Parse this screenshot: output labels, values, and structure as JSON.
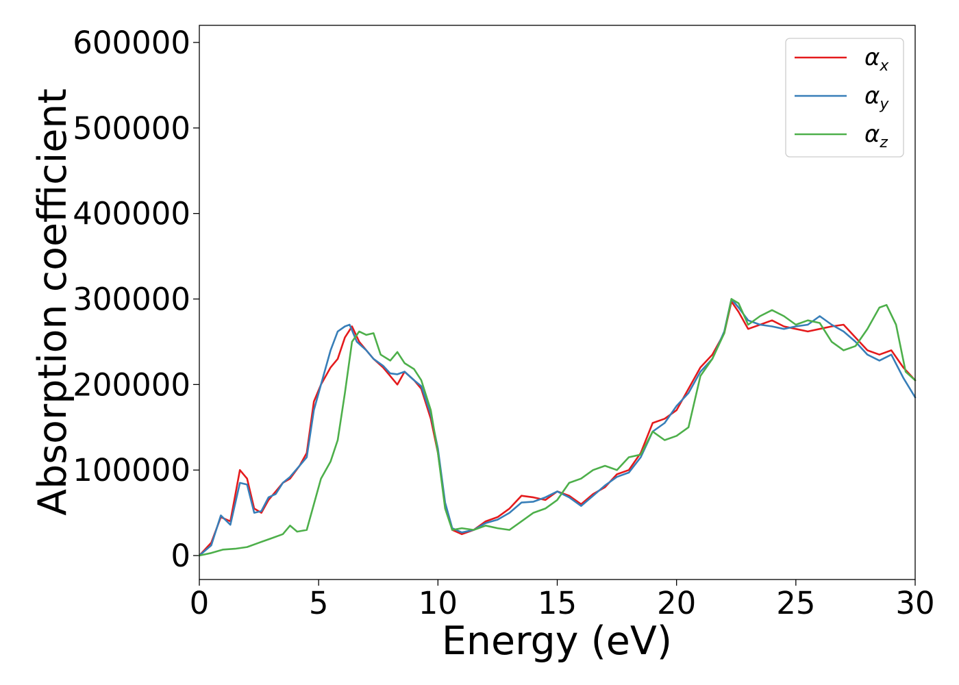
{
  "chart_data": {
    "type": "line",
    "title": "",
    "xlabel": "Energy (eV)",
    "ylabel": "Absorption coefficient",
    "xlim": [
      0,
      30
    ],
    "ylim": [
      -28000,
      620000
    ],
    "x_ticks": [
      0,
      5,
      10,
      15,
      20,
      25,
      30
    ],
    "y_ticks": [
      0,
      100000,
      200000,
      300000,
      400000,
      500000,
      600000
    ],
    "x_tick_labels": [
      "0",
      "5",
      "10",
      "15",
      "20",
      "25",
      "30"
    ],
    "y_tick_labels": [
      "0",
      "100000",
      "200000",
      "300000",
      "400000",
      "500000",
      "600000"
    ],
    "grid": false,
    "legend_position": "top-right",
    "series": [
      {
        "name": "α",
        "name_subscript": "x",
        "color": "#e41a1c",
        "x": [
          0,
          0.5,
          0.9,
          1.3,
          1.7,
          2.0,
          2.3,
          2.6,
          2.9,
          3.2,
          3.5,
          3.8,
          4.2,
          4.5,
          4.8,
          5.1,
          5.5,
          5.8,
          6.1,
          6.4,
          6.7,
          7.0,
          7.3,
          7.7,
          8.0,
          8.3,
          8.6,
          9.0,
          9.3,
          9.7,
          10.0,
          10.3,
          10.6,
          11.0,
          11.5,
          12.0,
          12.5,
          13.0,
          13.5,
          14.0,
          14.5,
          15.0,
          15.5,
          16.0,
          16.5,
          17.0,
          17.5,
          18.0,
          18.5,
          19.0,
          19.5,
          20.0,
          20.5,
          21.0,
          21.5,
          22.0,
          22.3,
          22.6,
          23.0,
          23.5,
          24.0,
          24.5,
          25.0,
          25.5,
          26.0,
          26.5,
          27.0,
          27.5,
          28.0,
          28.5,
          29.0,
          29.5,
          30.0
        ],
        "y": [
          0,
          15000,
          45000,
          40000,
          100000,
          90000,
          55000,
          50000,
          65000,
          75000,
          85000,
          90000,
          105000,
          120000,
          180000,
          200000,
          220000,
          230000,
          255000,
          268000,
          250000,
          240000,
          230000,
          220000,
          210000,
          200000,
          215000,
          205000,
          195000,
          160000,
          120000,
          60000,
          30000,
          25000,
          30000,
          40000,
          45000,
          55000,
          70000,
          68000,
          65000,
          75000,
          70000,
          60000,
          72000,
          80000,
          95000,
          100000,
          120000,
          155000,
          160000,
          170000,
          195000,
          220000,
          235000,
          260000,
          297000,
          285000,
          265000,
          270000,
          275000,
          268000,
          265000,
          262000,
          265000,
          268000,
          270000,
          255000,
          240000,
          235000,
          240000,
          220000,
          205000
        ]
      },
      {
        "name": "α",
        "name_subscript": "y",
        "color": "#377eb8",
        "x": [
          0,
          0.5,
          0.9,
          1.3,
          1.7,
          2.0,
          2.3,
          2.6,
          2.9,
          3.2,
          3.5,
          3.8,
          4.2,
          4.5,
          4.8,
          5.1,
          5.5,
          5.8,
          6.1,
          6.3,
          6.6,
          7.0,
          7.3,
          7.7,
          8.0,
          8.3,
          8.6,
          9.0,
          9.3,
          9.7,
          10.0,
          10.3,
          10.6,
          11.0,
          11.5,
          12.0,
          12.5,
          13.0,
          13.5,
          14.0,
          14.5,
          15.0,
          15.5,
          16.0,
          16.5,
          17.0,
          17.5,
          18.0,
          18.5,
          19.0,
          19.5,
          20.0,
          20.5,
          21.0,
          21.5,
          22.0,
          22.3,
          22.6,
          23.0,
          23.5,
          24.0,
          24.5,
          25.0,
          25.5,
          26.0,
          26.5,
          27.0,
          27.5,
          28.0,
          28.5,
          29.0,
          29.5,
          30.0
        ],
        "y": [
          0,
          12000,
          47000,
          36000,
          85000,
          83000,
          50000,
          52000,
          68000,
          72000,
          85000,
          92000,
          105000,
          115000,
          170000,
          200000,
          240000,
          262000,
          268000,
          270000,
          250000,
          240000,
          230000,
          222000,
          213000,
          212000,
          215000,
          205000,
          198000,
          165000,
          125000,
          62000,
          32000,
          27000,
          30000,
          38000,
          42000,
          50000,
          62000,
          63000,
          68000,
          75000,
          68000,
          58000,
          70000,
          82000,
          92000,
          97000,
          115000,
          145000,
          155000,
          175000,
          190000,
          215000,
          230000,
          262000,
          300000,
          290000,
          275000,
          270000,
          268000,
          265000,
          268000,
          270000,
          280000,
          270000,
          262000,
          250000,
          235000,
          228000,
          235000,
          208000,
          185000
        ]
      },
      {
        "name": "α",
        "name_subscript": "z",
        "color": "#4daf4a",
        "x": [
          0,
          0.5,
          1.0,
          1.5,
          2.0,
          2.5,
          3.0,
          3.5,
          3.8,
          4.1,
          4.5,
          4.8,
          5.1,
          5.5,
          5.8,
          6.1,
          6.4,
          6.7,
          7.0,
          7.3,
          7.6,
          8.0,
          8.3,
          8.6,
          9.0,
          9.3,
          9.7,
          10.0,
          10.3,
          10.6,
          11.0,
          11.5,
          12.0,
          12.5,
          13.0,
          13.5,
          14.0,
          14.5,
          15.0,
          15.5,
          16.0,
          16.5,
          17.0,
          17.5,
          18.0,
          18.5,
          19.0,
          19.5,
          20.0,
          20.5,
          21.0,
          21.5,
          22.0,
          22.3,
          22.6,
          23.0,
          23.5,
          24.0,
          24.5,
          25.0,
          25.5,
          26.0,
          26.5,
          27.0,
          27.5,
          28.0,
          28.5,
          28.8,
          29.2,
          29.6,
          30.0
        ],
        "y": [
          0,
          3000,
          7000,
          8000,
          10000,
          15000,
          20000,
          25000,
          35000,
          28000,
          30000,
          60000,
          90000,
          110000,
          135000,
          190000,
          250000,
          262000,
          258000,
          260000,
          235000,
          228000,
          238000,
          225000,
          218000,
          205000,
          170000,
          120000,
          55000,
          30000,
          32000,
          30000,
          35000,
          32000,
          30000,
          40000,
          50000,
          55000,
          65000,
          85000,
          90000,
          100000,
          105000,
          100000,
          115000,
          118000,
          145000,
          135000,
          140000,
          150000,
          210000,
          230000,
          260000,
          300000,
          295000,
          270000,
          280000,
          287000,
          280000,
          270000,
          275000,
          272000,
          250000,
          240000,
          245000,
          265000,
          290000,
          293000,
          270000,
          215000,
          205000
        ]
      }
    ]
  }
}
